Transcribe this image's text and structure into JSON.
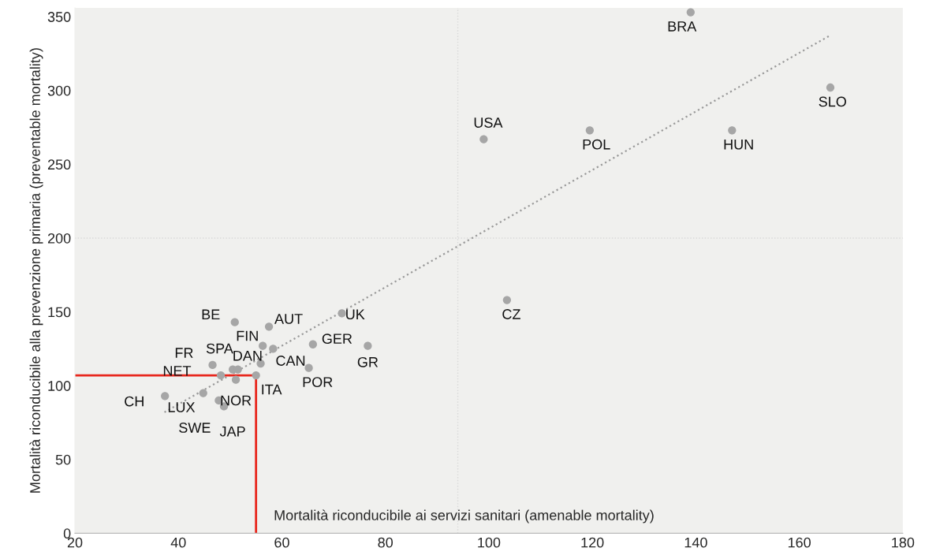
{
  "chart_data": {
    "type": "scatter",
    "ylabel": "Mortalità riconducibile alla prevenzione primaria (preventable mortality)",
    "xlabel": "Mortalità riconducibile ai servizi sanitari (amenable mortality)",
    "xlim": [
      20,
      180
    ],
    "xticks": [
      20,
      40,
      60,
      80,
      100,
      120,
      140,
      160,
      180
    ],
    "ylim": [
      0,
      356
    ],
    "yticks": [
      0,
      50,
      100,
      150,
      200,
      250,
      300,
      350
    ],
    "grid": false,
    "legend": false,
    "series": [
      {
        "marker": "circle",
        "color": "#a6a6a6",
        "x": [
          139,
          166,
          99,
          119.5,
          147,
          103.5,
          50.9,
          57.5,
          71.6,
          56.3,
          58.3,
          66,
          76.6,
          46.6,
          55.9,
          50.5,
          51.5,
          55,
          48.2,
          51.1,
          65.2,
          37.4,
          44.8,
          47.8,
          48.8
        ],
        "values": [
          353,
          302,
          267,
          273,
          273,
          158,
          143,
          140,
          149,
          127,
          125,
          128,
          127,
          114,
          115,
          111,
          111,
          107,
          107,
          104,
          112,
          93,
          95,
          90,
          86
        ]
      },
      {
        "type": "line",
        "color": "#9a9a9a",
        "line_style": "dotted",
        "x": [
          37.3,
          165.8
        ],
        "values": [
          82,
          337
        ]
      },
      {
        "type": "line",
        "color": "#e8261c",
        "line_style": "solid",
        "x": [
          20,
          55,
          55
        ],
        "values": [
          107,
          107,
          0
        ]
      }
    ],
    "ref_lines": [
      {
        "axis": "x",
        "value": 94,
        "color": "#d8d8d8",
        "line_style": "dotted"
      },
      {
        "axis": "y",
        "value": 200,
        "color": "#d8d8d8",
        "line_style": "dotted"
      }
    ],
    "annotations": [
      {
        "text": "BRA",
        "x": 139,
        "y": 353
      },
      {
        "text": "SLO",
        "x": 166,
        "y": 302
      },
      {
        "text": "USA",
        "x": 99,
        "y": 267
      },
      {
        "text": "POL",
        "x": 119.5,
        "y": 273
      },
      {
        "text": "HUN",
        "x": 147,
        "y": 273
      },
      {
        "text": "CZ",
        "x": 103.5,
        "y": 158
      },
      {
        "text": "BE",
        "x": 50.9,
        "y": 143
      },
      {
        "text": "AUT",
        "x": 57.5,
        "y": 140
      },
      {
        "text": "UK",
        "x": 71.6,
        "y": 149
      },
      {
        "text": "FIN",
        "x": 56.3,
        "y": 127
      },
      {
        "text": "CAN",
        "x": 58.3,
        "y": 125
      },
      {
        "text": "GER",
        "x": 66,
        "y": 128
      },
      {
        "text": "GR",
        "x": 76.6,
        "y": 127
      },
      {
        "text": "FR",
        "x": 46.6,
        "y": 114
      },
      {
        "text": "DAN",
        "x": 55.9,
        "y": 115
      },
      {
        "text": "SPA",
        "x": 50.5,
        "y": 111
      },
      {
        "text": "ITA",
        "x": 55,
        "y": 107
      },
      {
        "text": "NET",
        "x": 48.2,
        "y": 107
      },
      {
        "text": "NOR",
        "x": 51.1,
        "y": 104
      },
      {
        "text": "POR",
        "x": 65.2,
        "y": 112
      },
      {
        "text": "CH",
        "x": 37.4,
        "y": 93
      },
      {
        "text": "LUX",
        "x": 44.8,
        "y": 95
      },
      {
        "text": "SWE",
        "x": 47.8,
        "y": 90
      },
      {
        "text": "JAP",
        "x": 48.8,
        "y": 86
      }
    ]
  }
}
